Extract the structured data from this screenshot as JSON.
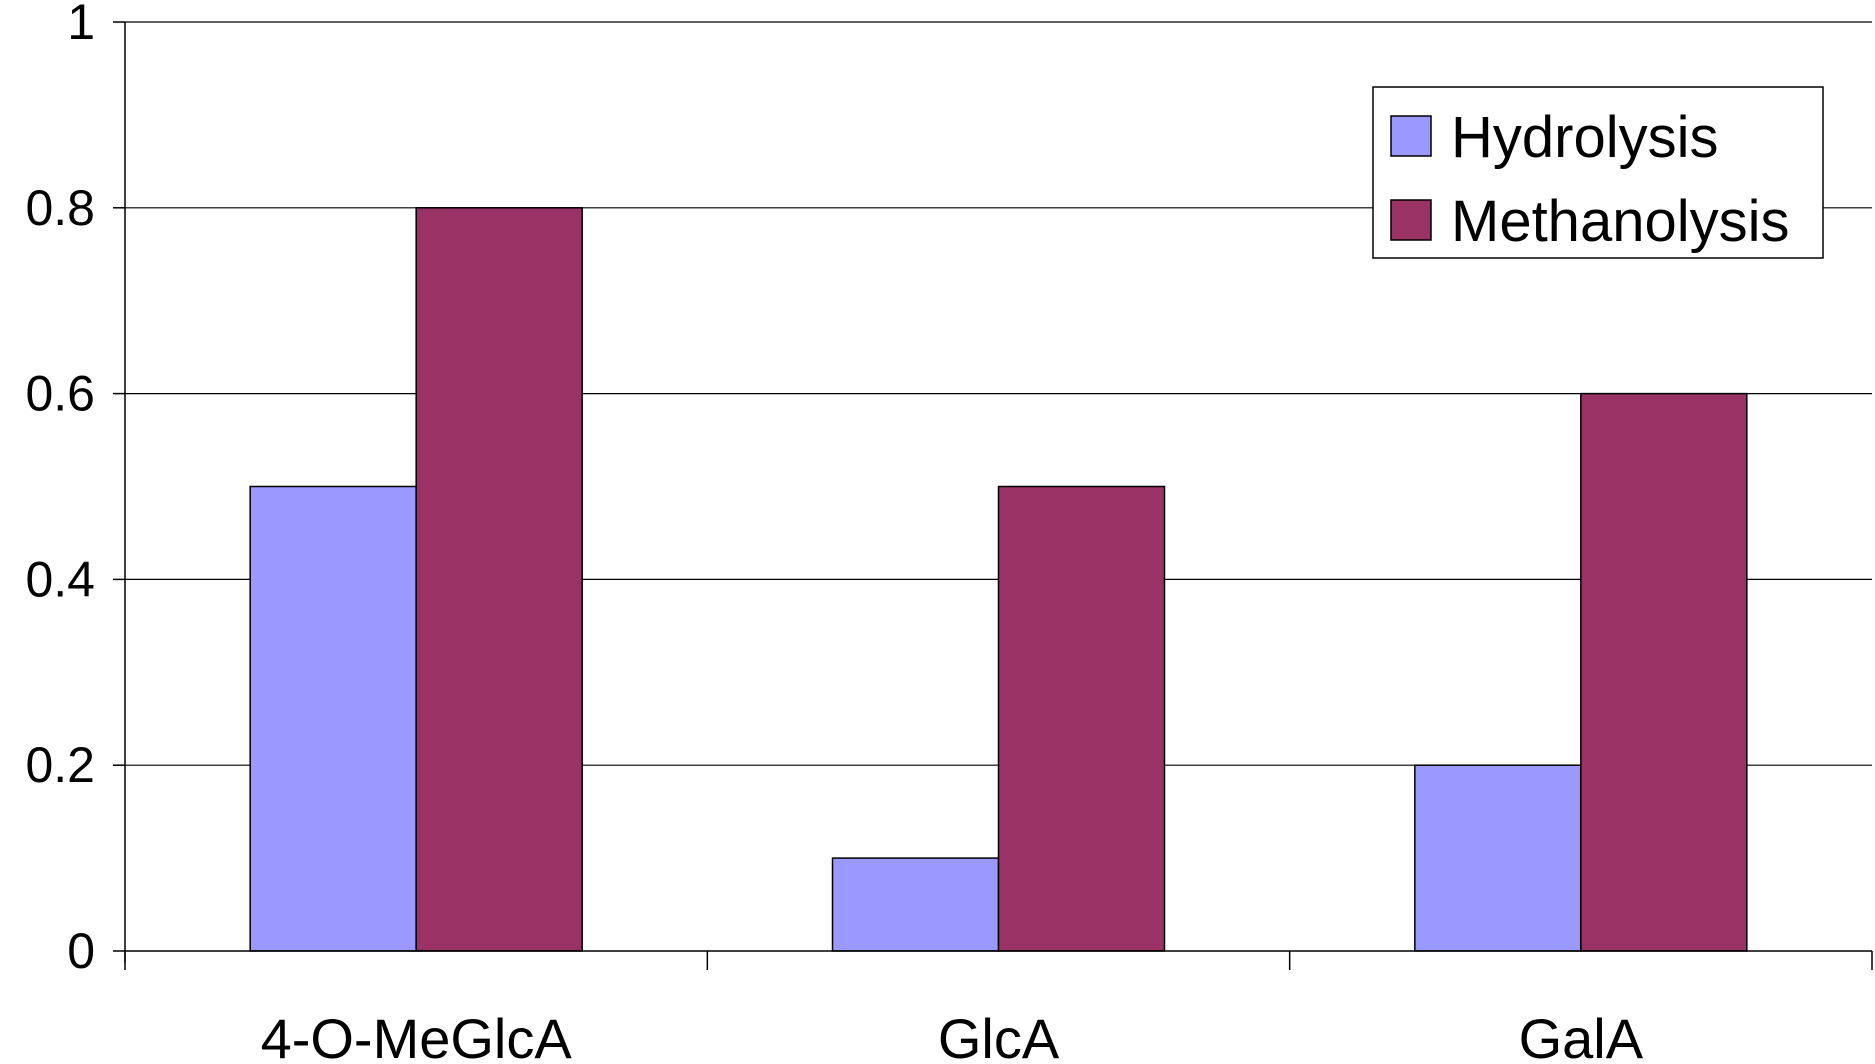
{
  "chart_data": {
    "type": "bar",
    "categories": [
      "4-O-MeGlcA",
      "GlcA",
      "GalA"
    ],
    "series": [
      {
        "name": "Hydrolysis",
        "values": [
          0.5,
          0.1,
          0.2
        ],
        "color": "#9999ff"
      },
      {
        "name": "Methanolysis",
        "values": [
          0.8,
          0.5,
          0.6
        ],
        "color": "#993366"
      }
    ],
    "ylim": [
      0,
      1
    ],
    "yticks": [
      "0",
      "0.2",
      "0.4",
      "0.6",
      "0.8",
      "1"
    ],
    "ytick_values": [
      0,
      0.2,
      0.4,
      0.6,
      0.8,
      1
    ],
    "grid": true,
    "legend_position": "top-right"
  }
}
